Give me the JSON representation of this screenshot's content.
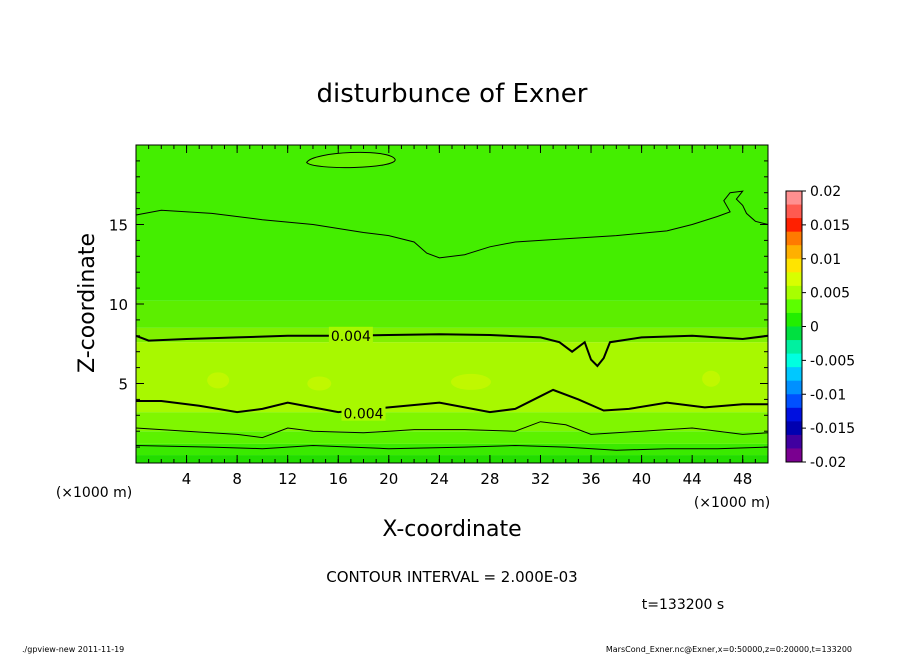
{
  "chart_data": {
    "type": "contour",
    "title": "disturbunce of Exner",
    "xlabel": "X-coordinate",
    "ylabel": "Z-coordinate",
    "x_unit_left": "(×1000 m)",
    "x_unit_right": "(×1000 m)",
    "xlim": [
      0,
      50
    ],
    "ylim": [
      0,
      20
    ],
    "x_ticks": [
      4,
      8,
      12,
      16,
      20,
      24,
      28,
      32,
      36,
      40,
      44,
      48
    ],
    "y_ticks": [
      5,
      10,
      15
    ],
    "contour_labels": [
      {
        "text": "0.004",
        "x": 17,
        "z": 8.0
      },
      {
        "text": "0.004",
        "x": 18,
        "z": 3.1
      }
    ],
    "colorbar": {
      "ticks": [
        "0.02",
        "0.015",
        "0.01",
        "0.005",
        "0",
        "-0.005",
        "-0.01",
        "-0.015",
        "-0.02"
      ],
      "colors": [
        "#ff9090",
        "#ff5a50",
        "#ff2000",
        "#ff7a00",
        "#ffb000",
        "#ffe400",
        "#d8ff00",
        "#a8ff00",
        "#5cff00",
        "#22ee00",
        "#00e040",
        "#00f0a0",
        "#00ffe0",
        "#00c8ff",
        "#0090ff",
        "#0050ff",
        "#0010e0",
        "#0000b0",
        "#4000a0",
        "#7a0090"
      ]
    },
    "contour_interval": "CONTOUR INTERVAL = 2.000E-03",
    "time_label": "t=133200 s"
  },
  "footer": {
    "left": "./gpview-new   2011-11-19",
    "right": "MarsCond_Exner.nc@Exner,x=0:50000,z=0:20000,t=133200"
  }
}
